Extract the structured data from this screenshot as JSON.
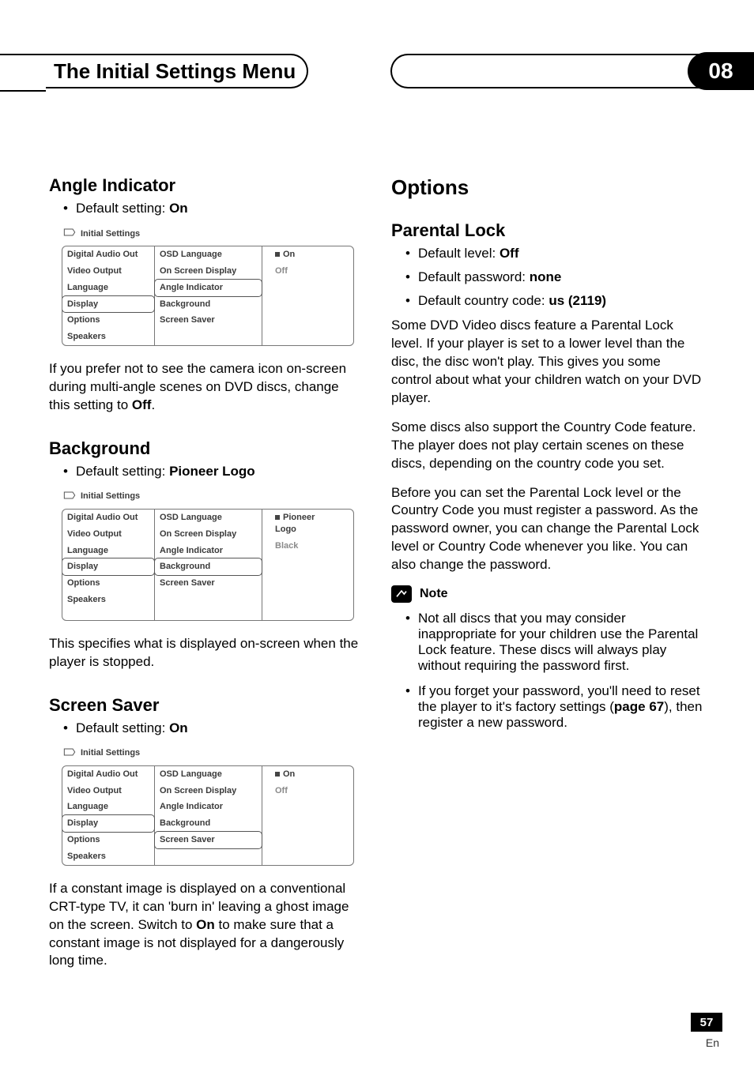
{
  "header": {
    "title": "The Initial Settings Menu",
    "chapter": "08"
  },
  "page": {
    "number": "57",
    "lang": "En"
  },
  "left": {
    "angle": {
      "heading": "Angle Indicator",
      "default_label": "Default setting: ",
      "default_value": "On",
      "body": "If you prefer not to see the camera icon on-screen during multi-angle scenes on DVD discs, change this setting to ",
      "body_bold": "Off",
      "body_tail": "."
    },
    "background": {
      "heading": "Background",
      "default_label": "Default setting: ",
      "default_value": "Pioneer Logo",
      "body": "This specifies what is displayed on-screen when the player is stopped."
    },
    "saver": {
      "heading": "Screen Saver",
      "default_label": "Default setting: ",
      "default_value": "On",
      "body1": "If a constant image is displayed on a conventional CRT-type TV, it can 'burn in' leaving a ghost image on the screen. Switch to ",
      "body1_bold": "On",
      "body1_tail": " to make sure that a constant image is not displayed for a dangerously long time."
    }
  },
  "right": {
    "options_heading": "Options",
    "parental": {
      "heading": "Parental Lock",
      "b1_label": "Default level: ",
      "b1_value": "Off",
      "b2_label": "Default password: ",
      "b2_value": "none",
      "b3_label": "Default country code: ",
      "b3_value": "us (2119)",
      "p1": "Some DVD Video discs feature a Parental Lock level. If your player is set to a lower level than the disc, the disc won't play. This gives you some control about what your children watch on your DVD player.",
      "p2": "Some discs also support the Country Code feature. The player does not play certain scenes on these discs, depending on the country code you set.",
      "p3": "Before you can set the Parental Lock level or the Country Code you must register a password. As the password owner, you can change the Parental Lock level or Country Code whenever you like. You can also change the password.",
      "note_label": "Note",
      "note1": "Not all discs that you may consider inappropriate for your children use the Parental Lock feature. These discs will always play without requiring the password first.",
      "note2a": "If you forget your password, you'll need to reset the player to it's factory settings (",
      "note2b": "page 67",
      "note2c": "), then register a new password."
    }
  },
  "panel_common": {
    "title": "Initial Settings",
    "col1": [
      "Digital Audio Out",
      "Video Output",
      "Language",
      "Display",
      "Options",
      "Speakers"
    ],
    "col2": [
      "OSD Language",
      "On Screen Display",
      "Angle Indicator",
      "Background",
      "Screen Saver"
    ]
  },
  "panels": {
    "angle": {
      "col1_selected": 3,
      "col2_selected": 2,
      "col3": [
        "On",
        "Off"
      ],
      "col3_marked": 0
    },
    "background": {
      "col1_selected": 3,
      "col2_selected": 3,
      "col3": [
        "Pioneer Logo",
        "Black"
      ],
      "col3_marked": 0
    },
    "saver": {
      "col1_selected": 3,
      "col2_selected": 4,
      "col3": [
        "On",
        "Off"
      ],
      "col3_marked": 0
    }
  }
}
